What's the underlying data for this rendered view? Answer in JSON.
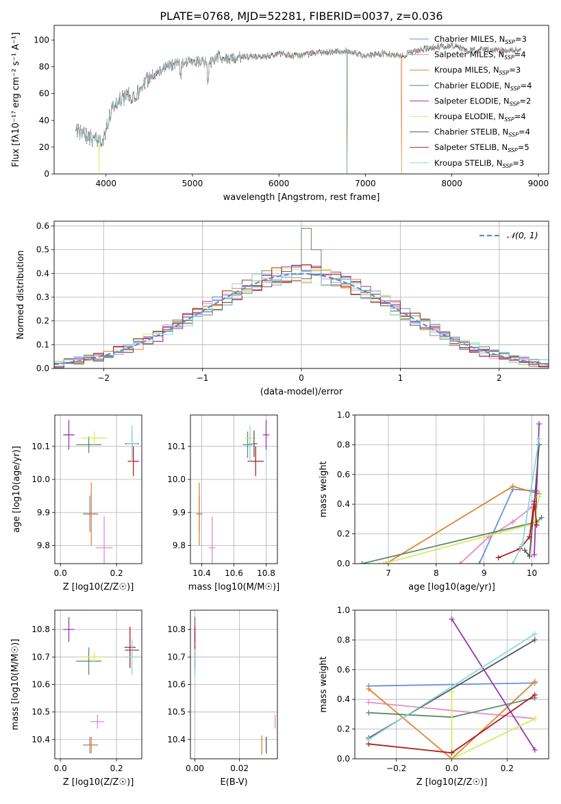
{
  "figure_title": "PLATE=0768, MJD=52281, FIBERID=0037, z=0.036",
  "colors": [
    "#6a8fdc",
    "#e88ac0",
    "#e0822d",
    "#5b8a63",
    "#9933b3",
    "#d7e860",
    "#555555",
    "#b01c1c",
    "#8ad7e0"
  ],
  "chart_data": [
    {
      "id": "spectrum",
      "type": "line",
      "title": "PLATE=0768, MJD=52281, FIBERID=0037, z=0.036",
      "xlabel": "wavelength [Angstrom, rest frame]",
      "ylabel": "Flux [fλ10⁻¹⁷ erg cm⁻² s⁻¹ A⁻¹]",
      "xlim": [
        3400,
        9120
      ],
      "ylim": [
        0,
        111
      ],
      "xticks": [
        4000,
        5000,
        6000,
        7000,
        8000,
        9000
      ],
      "yticks": [
        0,
        20,
        40,
        60,
        80,
        100
      ],
      "legend_position": "top-right",
      "series": [
        {
          "name": "Chabrier MILES, N_SSP=3"
        },
        {
          "name": "Salpeter MILES, N_SSP=4"
        },
        {
          "name": "Kroupa MILES, N_SSP=3"
        },
        {
          "name": "Chabrier ELODIE, N_SSP=4"
        },
        {
          "name": "Salpeter ELODIE, N_SSP=2"
        },
        {
          "name": "Kroupa ELODIE, N_SSP=4"
        },
        {
          "name": "Chabrier STELIB, N_SSP=4"
        },
        {
          "name": "Salpeter STELIB, N_SSP=5"
        },
        {
          "name": "Kroupa STELIB, N_SSP=3"
        }
      ],
      "continuum": {
        "x": [
          3650,
          3800,
          3950,
          4050,
          4150,
          4250,
          4350,
          4500,
          4700,
          4900,
          5100,
          5200,
          5300,
          5400,
          5600,
          5800,
          6000,
          6200,
          6400,
          6600,
          6800,
          7000,
          7200,
          7400,
          7600,
          7800,
          8000,
          8200,
          8400,
          8600,
          8800
        ],
        "y": [
          32,
          28,
          22,
          45,
          55,
          58,
          60,
          72,
          80,
          84,
          84,
          82,
          88,
          85,
          88,
          87,
          90,
          88,
          90,
          91,
          92,
          88,
          90,
          88,
          92,
          95,
          96,
          92,
          93,
          92,
          93
        ]
      },
      "dropouts": [
        {
          "x": 3920,
          "series": 5
        },
        {
          "x": 6790,
          "series": 3
        },
        {
          "x": 7420,
          "series": 2
        }
      ]
    },
    {
      "id": "residuals",
      "type": "line",
      "xlabel": "(data-model)/error",
      "ylabel": "Normed distribution",
      "xlim": [
        -2.5,
        2.5
      ],
      "ylim": [
        0,
        0.62
      ],
      "xticks": [
        -2,
        -1,
        0,
        1,
        2
      ],
      "xtick_labels": [
        "−2",
        "−1",
        "0",
        "1",
        "2"
      ],
      "yticks": [
        0.0,
        0.1,
        0.2,
        0.3,
        0.4,
        0.5,
        0.6
      ],
      "grid": true,
      "legend_position": "top-right",
      "reference_curve": {
        "name": "𝒩(0, 1)",
        "mean": 0,
        "sigma": 1
      },
      "histogram_bins": {
        "start": -2.5,
        "width": 0.1
      },
      "highlight_bins": [
        {
          "x": 0.0,
          "height": 0.59
        },
        {
          "x": 0.1,
          "height": 0.5
        }
      ]
    },
    {
      "id": "age_vs_Z",
      "type": "scatter",
      "xlabel": "Z [log10(Z/Z☉)]",
      "ylabel": "age  [log10(age/yr)]",
      "xlim": [
        -0.02,
        0.29
      ],
      "ylim": [
        9.745,
        10.195
      ],
      "xticks": [
        0.0,
        0.2
      ],
      "yticks": [
        9.8,
        9.9,
        10.0,
        10.1
      ],
      "grid": true,
      "points": [
        {
          "series": 0,
          "x": 0.105,
          "y": 9.896,
          "xerr": 0.025,
          "yerr": 0.055
        },
        {
          "series": 1,
          "x": 0.156,
          "y": 9.793,
          "xerr": 0.03,
          "yerr": 0.095
        },
        {
          "series": 2,
          "x": 0.11,
          "y": 9.895,
          "xerr": 0.025,
          "yerr": 0.095
        },
        {
          "series": 3,
          "x": 0.101,
          "y": 10.105,
          "xerr": 0.045,
          "yerr": 0.025
        },
        {
          "series": 4,
          "x": 0.03,
          "y": 10.135,
          "xerr": 0.02,
          "yerr": 0.045
        },
        {
          "series": 5,
          "x": 0.121,
          "y": 10.125,
          "xerr": 0.045,
          "yerr": 0.02
        },
        {
          "series": 6,
          "x": 0.255,
          "y": 10.108,
          "xerr": 0.025,
          "yerr": 0.04
        },
        {
          "series": 7,
          "x": 0.26,
          "y": 10.055,
          "xerr": 0.02,
          "yerr": 0.045
        },
        {
          "series": 8,
          "x": 0.255,
          "y": 10.108,
          "xerr": 0.02,
          "yerr": 0.055
        }
      ]
    },
    {
      "id": "age_vs_mass",
      "type": "scatter",
      "xlabel": "mass [log10(M/M☉)]",
      "ylabel": "",
      "xlim": [
        10.33,
        10.87
      ],
      "ylim": [
        9.745,
        10.195
      ],
      "xticks": [
        10.4,
        10.6,
        10.8
      ],
      "yticks": [
        9.8,
        9.9,
        10.0,
        10.1
      ],
      "grid": true,
      "points": [
        {
          "series": 0,
          "x": 10.385,
          "y": 9.896,
          "xerr": 0.02,
          "yerr": 0.055
        },
        {
          "series": 1,
          "x": 10.465,
          "y": 9.793,
          "xerr": 0.02,
          "yerr": 0.095
        },
        {
          "series": 2,
          "x": 10.385,
          "y": 9.895,
          "xerr": 0.01,
          "yerr": 0.095
        },
        {
          "series": 3,
          "x": 10.685,
          "y": 10.105,
          "xerr": 0.03,
          "yerr": 0.04
        },
        {
          "series": 4,
          "x": 10.8,
          "y": 10.135,
          "xerr": 0.02,
          "yerr": 0.045
        },
        {
          "series": 5,
          "x": 10.7,
          "y": 10.125,
          "xerr": 0.03,
          "yerr": 0.02
        },
        {
          "series": 6,
          "x": 10.725,
          "y": 10.108,
          "xerr": 0.02,
          "yerr": 0.04
        },
        {
          "series": 7,
          "x": 10.735,
          "y": 10.055,
          "xerr": 0.05,
          "yerr": 0.045
        },
        {
          "series": 8,
          "x": 10.7,
          "y": 10.108,
          "xerr": 0.02,
          "yerr": 0.055
        }
      ]
    },
    {
      "id": "weight_vs_age",
      "type": "line",
      "xlabel": "age  [log10(age/yr)]",
      "ylabel": "mass weight",
      "xlim": [
        6.3,
        10.35
      ],
      "ylim": [
        0,
        1.0
      ],
      "xticks": [
        7,
        8,
        9,
        10
      ],
      "yticks": [
        0.0,
        0.2,
        0.4,
        0.6,
        0.8,
        1.0
      ],
      "grid": true,
      "series_points": [
        {
          "series": 0,
          "x": [
            8.9,
            9.6,
            10.1
          ],
          "y": [
            0.0,
            0.5,
            0.49
          ]
        },
        {
          "series": 1,
          "x": [
            8.5,
            9.1,
            9.6,
            10.0
          ],
          "y": [
            0.0,
            0.18,
            0.28,
            0.38
          ]
        },
        {
          "series": 2,
          "x": [
            6.95,
            9.6,
            10.15
          ],
          "y": [
            0.0,
            0.52,
            0.47
          ]
        },
        {
          "series": 3,
          "x": [
            6.45,
            10.1,
            10.2
          ],
          "y": [
            0.0,
            0.28,
            0.31
          ]
        },
        {
          "series": 4,
          "x": [
            10.05,
            10.15
          ],
          "y": [
            0.06,
            0.94
          ]
        },
        {
          "series": 5,
          "x": [
            6.9,
            10.05,
            10.15
          ],
          "y": [
            0.0,
            0.27,
            0.45
          ]
        },
        {
          "series": 6,
          "x": [
            9.85,
            9.95,
            10.05,
            10.15
          ],
          "y": [
            0.09,
            0.05,
            0.4,
            0.8
          ]
        },
        {
          "series": 7,
          "x": [
            9.3,
            9.75,
            9.95,
            10.05,
            10.1
          ],
          "y": [
            0.04,
            0.1,
            0.18,
            0.42,
            0.26
          ]
        },
        {
          "series": 8,
          "x": [
            9.6,
            9.8,
            10.15
          ],
          "y": [
            0.0,
            0.13,
            0.84
          ]
        }
      ]
    },
    {
      "id": "mass_vs_Z",
      "type": "scatter",
      "xlabel": "Z [log10(Z/Z☉)]",
      "ylabel": "mass [log10(M/M☉)]",
      "xlim": [
        -0.02,
        0.29
      ],
      "ylim": [
        10.33,
        10.87
      ],
      "xticks": [
        0.0,
        0.2
      ],
      "yticks": [
        10.4,
        10.5,
        10.6,
        10.7,
        10.8
      ],
      "grid": true,
      "points": [
        {
          "series": 0,
          "x": 0.105,
          "y": 10.38,
          "xerr": 0.025,
          "yerr": 0.03
        },
        {
          "series": 1,
          "x": 0.132,
          "y": 10.465,
          "xerr": 0.025,
          "yerr": 0.025
        },
        {
          "series": 2,
          "x": 0.11,
          "y": 10.38,
          "xerr": 0.025,
          "yerr": 0.03
        },
        {
          "series": 3,
          "x": 0.101,
          "y": 10.685,
          "xerr": 0.045,
          "yerr": 0.05
        },
        {
          "series": 4,
          "x": 0.03,
          "y": 10.8,
          "xerr": 0.02,
          "yerr": 0.045
        },
        {
          "series": 5,
          "x": 0.121,
          "y": 10.7,
          "xerr": 0.045,
          "yerr": 0.02
        },
        {
          "series": 6,
          "x": 0.255,
          "y": 10.725,
          "xerr": 0.025,
          "yerr": 0.02
        },
        {
          "series": 7,
          "x": 0.248,
          "y": 10.735,
          "xerr": 0.02,
          "yerr": 0.075
        },
        {
          "series": 8,
          "x": 0.255,
          "y": 10.7,
          "xerr": 0.02,
          "yerr": 0.065
        }
      ]
    },
    {
      "id": "mass_vs_EBV",
      "type": "scatter",
      "xlabel": "E(B-V)",
      "ylabel": "",
      "xlim": [
        -0.002,
        0.037
      ],
      "ylim": [
        10.33,
        10.87
      ],
      "xticks": [
        0.0,
        0.02
      ],
      "yticks": [
        10.4,
        10.5,
        10.6,
        10.7,
        10.8
      ],
      "grid": true,
      "points": [
        {
          "series": 0,
          "x": 0.0,
          "y": 10.7,
          "yerr": 0.04
        },
        {
          "series": 1,
          "x": 0.036,
          "y": 10.465,
          "yerr": 0.025
        },
        {
          "series": 2,
          "x": 0.03,
          "y": 10.38,
          "yerr": 0.035
        },
        {
          "series": 3,
          "x": 0.0,
          "y": 10.685,
          "yerr": 0.05
        },
        {
          "series": 4,
          "x": 0.0,
          "y": 10.8,
          "yerr": 0.045
        },
        {
          "series": 5,
          "x": 0.0,
          "y": 10.7,
          "yerr": 0.02
        },
        {
          "series": 6,
          "x": 0.032,
          "y": 10.38,
          "yerr": 0.03
        },
        {
          "series": 7,
          "x": 0.0,
          "y": 10.735,
          "yerr": 0.075
        },
        {
          "series": 8,
          "x": 0.0,
          "y": 10.68,
          "yerr": 0.05
        }
      ]
    },
    {
      "id": "weight_vs_Z",
      "type": "line",
      "xlabel": "Z [log10(Z/Z☉)]",
      "ylabel": "mass weight",
      "xlim": [
        -0.35,
        0.35
      ],
      "ylim": [
        0,
        1.0
      ],
      "xticks": [
        -0.2,
        0.0,
        0.2
      ],
      "xtick_labels": [
        "−0.2",
        "0.0",
        "0.2"
      ],
      "yticks": [
        0.0,
        0.2,
        0.4,
        0.6,
        0.8,
        1.0
      ],
      "grid": true,
      "series_points": [
        {
          "series": 0,
          "x": [
            -0.3,
            0.3
          ],
          "y": [
            0.49,
            0.51
          ]
        },
        {
          "series": 1,
          "x": [
            -0.3,
            0.3
          ],
          "y": [
            0.38,
            0.27
          ]
        },
        {
          "series": 2,
          "x": [
            -0.3,
            0.0,
            0.3
          ],
          "y": [
            0.47,
            0.0,
            0.52
          ]
        },
        {
          "series": 3,
          "x": [
            -0.3,
            0.0,
            0.3
          ],
          "y": [
            0.31,
            0.28,
            0.41
          ]
        },
        {
          "series": 4,
          "x": [
            0.0,
            0.3
          ],
          "y": [
            0.94,
            0.06
          ]
        },
        {
          "series": 5,
          "x": [
            0.0,
            0.0,
            0.3
          ],
          "y": [
            0.45,
            0.0,
            0.27
          ]
        },
        {
          "series": 6,
          "x": [
            -0.3,
            0.3
          ],
          "y": [
            0.14,
            0.8
          ]
        },
        {
          "series": 7,
          "x": [
            -0.3,
            0.0,
            0.3
          ],
          "y": [
            0.1,
            0.04,
            0.43
          ]
        },
        {
          "series": 8,
          "x": [
            -0.3,
            0.3
          ],
          "y": [
            0.13,
            0.84
          ]
        }
      ]
    }
  ]
}
